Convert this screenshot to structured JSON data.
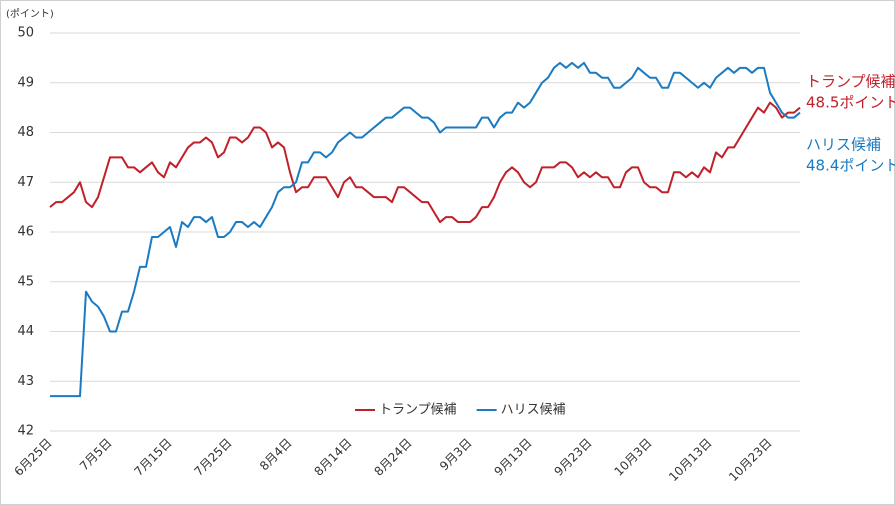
{
  "chart_data": {
    "type": "line",
    "y_label": "(ポイント)",
    "categories": [
      "6月25日",
      null,
      null,
      null,
      null,
      null,
      null,
      null,
      null,
      null,
      "7月5日",
      null,
      null,
      null,
      null,
      null,
      null,
      null,
      null,
      null,
      "7月15日",
      null,
      null,
      null,
      null,
      null,
      null,
      null,
      null,
      null,
      "7月25日",
      null,
      null,
      null,
      null,
      null,
      null,
      null,
      null,
      null,
      "8月4日",
      null,
      null,
      null,
      null,
      null,
      null,
      null,
      null,
      null,
      "8月14日",
      null,
      null,
      null,
      null,
      null,
      null,
      null,
      null,
      null,
      "8月24日",
      null,
      null,
      null,
      null,
      null,
      null,
      null,
      null,
      null,
      "9月3日",
      null,
      null,
      null,
      null,
      null,
      null,
      null,
      null,
      null,
      "9月13日",
      null,
      null,
      null,
      null,
      null,
      null,
      null,
      null,
      null,
      "9月23日",
      null,
      null,
      null,
      null,
      null,
      null,
      null,
      null,
      null,
      "10月3日",
      null,
      null,
      null,
      null,
      null,
      null,
      null,
      null,
      null,
      "10月13日",
      null,
      null,
      null,
      null,
      null,
      null,
      null,
      null,
      null,
      "10月23日",
      null,
      null,
      null,
      null,
      null
    ],
    "series": [
      {
        "name": "トランプ候補",
        "color": "#c0202a",
        "values": [
          46.5,
          46.6,
          46.6,
          46.7,
          46.8,
          47.0,
          46.6,
          46.5,
          46.7,
          47.1,
          47.5,
          47.5,
          47.5,
          47.3,
          47.3,
          47.2,
          47.3,
          47.4,
          47.2,
          47.1,
          47.4,
          47.3,
          47.5,
          47.7,
          47.8,
          47.8,
          47.9,
          47.8,
          47.5,
          47.6,
          47.9,
          47.9,
          47.8,
          47.9,
          48.1,
          48.1,
          48.0,
          47.7,
          47.8,
          47.7,
          47.2,
          46.8,
          46.9,
          46.9,
          47.1,
          47.1,
          47.1,
          46.9,
          46.7,
          47.0,
          47.1,
          46.9,
          46.9,
          46.8,
          46.7,
          46.7,
          46.7,
          46.6,
          46.9,
          46.9,
          46.8,
          46.7,
          46.6,
          46.6,
          46.4,
          46.2,
          46.3,
          46.3,
          46.2,
          46.2,
          46.2,
          46.3,
          46.5,
          46.5,
          46.7,
          47.0,
          47.2,
          47.3,
          47.2,
          47.0,
          46.9,
          47.0,
          47.3,
          47.3,
          47.3,
          47.4,
          47.4,
          47.3,
          47.1,
          47.2,
          47.1,
          47.2,
          47.1,
          47.1,
          46.9,
          46.9,
          47.2,
          47.3,
          47.3,
          47.0,
          46.9,
          46.9,
          46.8,
          46.8,
          47.2,
          47.2,
          47.1,
          47.2,
          47.1,
          47.3,
          47.2,
          47.6,
          47.5,
          47.7,
          47.7,
          47.9,
          48.1,
          48.3,
          48.5,
          48.4,
          48.6,
          48.5,
          48.3,
          48.4,
          48.4,
          48.5
        ]
      },
      {
        "name": "ハリス候補",
        "color": "#1a7bc2",
        "values": [
          42.7,
          42.7,
          42.7,
          42.7,
          42.7,
          42.7,
          44.8,
          44.6,
          44.5,
          44.3,
          44.0,
          44.0,
          44.4,
          44.4,
          44.8,
          45.3,
          45.3,
          45.9,
          45.9,
          46.0,
          46.1,
          45.7,
          46.2,
          46.1,
          46.3,
          46.3,
          46.2,
          46.3,
          45.9,
          45.9,
          46.0,
          46.2,
          46.2,
          46.1,
          46.2,
          46.1,
          46.3,
          46.5,
          46.8,
          46.9,
          46.9,
          47.0,
          47.4,
          47.4,
          47.6,
          47.6,
          47.5,
          47.6,
          47.8,
          47.9,
          48.0,
          47.9,
          47.9,
          48.0,
          48.1,
          48.2,
          48.3,
          48.3,
          48.4,
          48.5,
          48.5,
          48.4,
          48.3,
          48.3,
          48.2,
          48.0,
          48.1,
          48.1,
          48.1,
          48.1,
          48.1,
          48.1,
          48.3,
          48.3,
          48.1,
          48.3,
          48.4,
          48.4,
          48.6,
          48.5,
          48.6,
          48.8,
          49.0,
          49.1,
          49.3,
          49.4,
          49.3,
          49.4,
          49.3,
          49.4,
          49.2,
          49.2,
          49.1,
          49.1,
          48.9,
          48.9,
          49.0,
          49.1,
          49.3,
          49.2,
          49.1,
          49.1,
          48.9,
          48.9,
          49.2,
          49.2,
          49.1,
          49.0,
          48.9,
          49.0,
          48.9,
          49.1,
          49.2,
          49.3,
          49.2,
          49.3,
          49.3,
          49.2,
          49.3,
          49.3,
          48.8,
          48.6,
          48.4,
          48.3,
          48.3,
          48.4
        ]
      }
    ],
    "end_labels": [
      [
        "トランプ候補",
        "48.5ポイント"
      ],
      [
        "ハリス候補",
        "48.4ポイント"
      ]
    ],
    "ylim": [
      42,
      50
    ],
    "yticks": [
      42,
      43,
      44,
      45,
      46,
      47,
      48,
      49,
      50
    ],
    "grid": true,
    "legend": "bottom"
  }
}
